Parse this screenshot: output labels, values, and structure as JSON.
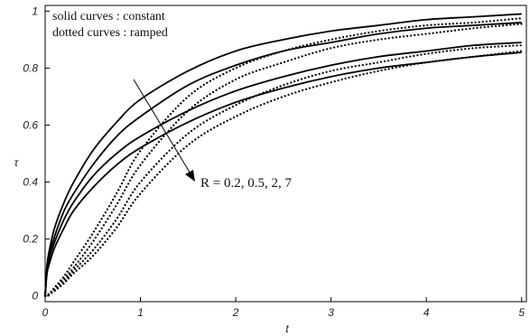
{
  "chart_data": {
    "type": "line",
    "xlabel": "t",
    "ylabel": "τ",
    "xlim": [
      0,
      5.05
    ],
    "ylim": [
      -0.02,
      1.02
    ],
    "x_ticks": [
      "0",
      "1",
      "2",
      "3",
      "4",
      "5"
    ],
    "y_ticks": [
      "0",
      "0.2",
      "0.4",
      "0.6",
      "0.8",
      "1"
    ],
    "legend": [
      "solid curves : constant",
      "dotted curves : ramped"
    ],
    "annotation": "R = 0.2, 0.5, 2, 7",
    "grid": false,
    "x": [
      0,
      0.02,
      0.05,
      0.1,
      0.2,
      0.3,
      0.5,
      0.75,
      1,
      1.5,
      2,
      2.5,
      3,
      3.5,
      4,
      4.5,
      5
    ],
    "series": [
      {
        "name": "constant, R = 0.2",
        "style": "solid",
        "values": [
          0,
          0.11,
          0.17,
          0.24,
          0.33,
          0.4,
          0.51,
          0.61,
          0.69,
          0.79,
          0.86,
          0.9,
          0.93,
          0.95,
          0.97,
          0.98,
          0.99
        ]
      },
      {
        "name": "constant, R = 0.5",
        "style": "solid",
        "values": [
          0,
          0.1,
          0.15,
          0.21,
          0.3,
          0.36,
          0.46,
          0.56,
          0.63,
          0.74,
          0.81,
          0.86,
          0.89,
          0.92,
          0.94,
          0.95,
          0.96
        ]
      },
      {
        "name": "constant, R = 2",
        "style": "solid",
        "values": [
          0,
          0.09,
          0.14,
          0.19,
          0.27,
          0.33,
          0.42,
          0.5,
          0.56,
          0.65,
          0.72,
          0.77,
          0.81,
          0.84,
          0.86,
          0.88,
          0.89
        ]
      },
      {
        "name": "constant, R = 7",
        "style": "solid",
        "values": [
          0,
          0.08,
          0.12,
          0.17,
          0.24,
          0.3,
          0.38,
          0.46,
          0.52,
          0.61,
          0.68,
          0.73,
          0.77,
          0.8,
          0.82,
          0.84,
          0.855
        ]
      },
      {
        "name": "ramped, R = 0.2",
        "style": "dotted",
        "values": [
          0,
          0.003,
          0.01,
          0.03,
          0.07,
          0.12,
          0.22,
          0.36,
          0.51,
          0.7,
          0.8,
          0.86,
          0.9,
          0.93,
          0.95,
          0.96,
          0.975
        ]
      },
      {
        "name": "ramped, R = 0.5",
        "style": "dotted",
        "values": [
          0,
          0.003,
          0.01,
          0.025,
          0.06,
          0.1,
          0.19,
          0.32,
          0.46,
          0.65,
          0.76,
          0.82,
          0.87,
          0.9,
          0.92,
          0.94,
          0.955
        ]
      },
      {
        "name": "ramped, R = 2",
        "style": "dotted",
        "values": [
          0,
          0.003,
          0.008,
          0.02,
          0.05,
          0.09,
          0.16,
          0.27,
          0.4,
          0.57,
          0.67,
          0.74,
          0.79,
          0.82,
          0.85,
          0.87,
          0.88
        ]
      },
      {
        "name": "ramped, R = 7",
        "style": "dotted",
        "values": [
          0,
          0.002,
          0.007,
          0.018,
          0.045,
          0.08,
          0.14,
          0.24,
          0.36,
          0.53,
          0.63,
          0.7,
          0.75,
          0.79,
          0.82,
          0.84,
          0.86
        ]
      }
    ]
  }
}
